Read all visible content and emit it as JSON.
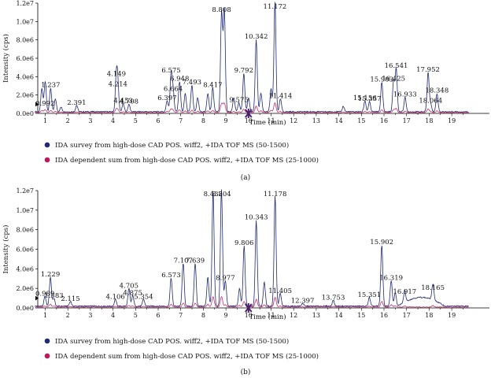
{
  "chart_data": [
    {
      "type": "line",
      "panel_label": "(a)",
      "xlabel": "Time (min)",
      "ylabel": "Intensity (cps)",
      "xlim": [
        0,
        20
      ],
      "ylim": [
        0,
        12000000
      ],
      "x_ticks": [
        1,
        2,
        3,
        4,
        5,
        6,
        7,
        8,
        9,
        10,
        11,
        12,
        13,
        14,
        15,
        16,
        17,
        18,
        19
      ],
      "y_ticks": [
        {
          "value": 0,
          "label": "0.0e0"
        },
        {
          "value": 2000000,
          "label": "2.0e6"
        },
        {
          "value": 4000000,
          "label": "4.0e6"
        },
        {
          "value": 6000000,
          "label": "6.0e6"
        },
        {
          "value": 8000000,
          "label": "8.0e6"
        },
        {
          "value": 10000000,
          "label": "1.0e7"
        },
        {
          "value": 12000000,
          "label": "1.2e7"
        }
      ],
      "series": [
        {
          "name": "IDA survey from high-dose CAD POS. wiff2, +IDA TOF MS (50-1500)",
          "color": "#1f2a78",
          "marker": "#1f2a78"
        },
        {
          "name": "IDA dependent sum from high-dose CAD POS. wiff2, +IDA TOF MS (25-1000)",
          "color": "#d0306a",
          "marker": "#c2185b"
        }
      ],
      "peaks": [
        {
          "time": 0.85,
          "height": 2500000,
          "label": ""
        },
        {
          "time": 1.0,
          "height": 2700000,
          "label": ""
        },
        {
          "time": 1.237,
          "height": 2600000,
          "label": "1.237"
        },
        {
          "time": 1.45,
          "height": 1400000,
          "label": ""
        },
        {
          "time": 0.992,
          "height": 600000,
          "label": "0.992"
        },
        {
          "time": 1.7,
          "height": 500000,
          "label": ""
        },
        {
          "time": 2.391,
          "height": 700000,
          "label": "2.391"
        },
        {
          "time": 4.149,
          "height": 3800000,
          "label": "4.149"
        },
        {
          "time": 4.214,
          "height": 2700000,
          "label": "4.214"
        },
        {
          "time": 4.453,
          "height": 900000,
          "label": "4.453"
        },
        {
          "time": 4.708,
          "height": 800000,
          "label": "4.708"
        },
        {
          "time": 6.397,
          "height": 1200000,
          "label": "6.397"
        },
        {
          "time": 6.575,
          "height": 4200000,
          "label": "6.575"
        },
        {
          "time": 6.664,
          "height": 2200000,
          "label": "6.664"
        },
        {
          "time": 6.948,
          "height": 3300000,
          "label": "6.948"
        },
        {
          "time": 7.2,
          "height": 2000000,
          "label": ""
        },
        {
          "time": 7.493,
          "height": 2900000,
          "label": "7.493"
        },
        {
          "time": 7.75,
          "height": 1500000,
          "label": ""
        },
        {
          "time": 8.2,
          "height": 2000000,
          "label": ""
        },
        {
          "time": 8.417,
          "height": 2600000,
          "label": "8.417"
        },
        {
          "time": 8.808,
          "height": 10800000,
          "label": "8.808"
        },
        {
          "time": 8.93,
          "height": 11200000,
          "label": ""
        },
        {
          "time": 9.35,
          "height": 1500000,
          "label": ""
        },
        {
          "time": 9.575,
          "height": 1000000,
          "label": "9.575"
        },
        {
          "time": 9.792,
          "height": 4200000,
          "label": "9.792"
        },
        {
          "time": 10.0,
          "height": 1500000,
          "label": ""
        },
        {
          "time": 10.342,
          "height": 7900000,
          "label": "10.342"
        },
        {
          "time": 10.55,
          "height": 2000000,
          "label": ""
        },
        {
          "time": 11.0,
          "height": 2500000,
          "label": ""
        },
        {
          "time": 11.172,
          "height": 12000000,
          "label": "11.172"
        },
        {
          "time": 11.414,
          "height": 1400000,
          "label": "11.414"
        },
        {
          "time": 14.2,
          "height": 600000,
          "label": ""
        },
        {
          "time": 15.156,
          "height": 1200000,
          "label": "15.156"
        },
        {
          "time": 15.357,
          "height": 1100000,
          "label": "15.357"
        },
        {
          "time": 15.903,
          "height": 3200000,
          "label": "15.903"
        },
        {
          "time": 16.425,
          "height": 3300000,
          "label": "16.425"
        },
        {
          "time": 16.541,
          "height": 4700000,
          "label": "16.541"
        },
        {
          "time": 16.933,
          "height": 1600000,
          "label": "16.933"
        },
        {
          "time": 17.952,
          "height": 4300000,
          "label": "17.952"
        },
        {
          "time": 18.348,
          "height": 2000000,
          "label": "18.348"
        },
        {
          "time": 18.064,
          "height": 900000,
          "label": "18.064"
        }
      ]
    },
    {
      "type": "line",
      "panel_label": "(b)",
      "xlabel": "Time (min)",
      "ylabel": "Intensity (cps)",
      "xlim": [
        0,
        20
      ],
      "ylim": [
        0,
        12000000
      ],
      "x_ticks": [
        1,
        2,
        3,
        4,
        5,
        6,
        7,
        8,
        9,
        10,
        11,
        12,
        13,
        14,
        15,
        16,
        17,
        18,
        19
      ],
      "y_ticks": [
        {
          "value": 0,
          "label": "0.0e0"
        },
        {
          "value": 2000000,
          "label": "2.0e6"
        },
        {
          "value": 4000000,
          "label": "4.0e6"
        },
        {
          "value": 6000000,
          "label": "6.0e6"
        },
        {
          "value": 8000000,
          "label": "8.0e6"
        },
        {
          "value": 10000000,
          "label": "1.0e7"
        },
        {
          "value": 12000000,
          "label": "1.2e7"
        }
      ],
      "series": [
        {
          "name": "IDA survey from high-dose CAD POS. wiff2, +IDA TOF MS (50-1500)",
          "color": "#1f2a78",
          "marker": "#1f2a78"
        },
        {
          "name": "IDA dependent sum from high-dose CAD POS. wiff2, +IDA TOF MS (25-1000)",
          "color": "#d0306a",
          "marker": "#c2185b"
        }
      ],
      "peaks": [
        {
          "time": 0.989,
          "height": 1000000,
          "label": "0.989"
        },
        {
          "time": 1.229,
          "height": 3000000,
          "label": "1.229"
        },
        {
          "time": 1.383,
          "height": 800000,
          "label": "1.383"
        },
        {
          "time": 2.115,
          "height": 500000,
          "label": "2.115"
        },
        {
          "time": 4.106,
          "height": 700000,
          "label": "4.106"
        },
        {
          "time": 4.705,
          "height": 1800000,
          "label": "4.705"
        },
        {
          "time": 4.875,
          "height": 1100000,
          "label": "4.875"
        },
        {
          "time": 5.354,
          "height": 700000,
          "label": "5.354"
        },
        {
          "time": 6.573,
          "height": 2900000,
          "label": "6.573"
        },
        {
          "time": 7.107,
          "height": 4400000,
          "label": "7.107"
        },
        {
          "time": 7.639,
          "height": 4400000,
          "label": "7.639"
        },
        {
          "time": 8.2,
          "height": 3000000,
          "label": ""
        },
        {
          "time": 8.432,
          "height": 11800000,
          "label": "8.432"
        },
        {
          "time": 8.804,
          "height": 12000000,
          "label": "8.804"
        },
        {
          "time": 8.977,
          "height": 2600000,
          "label": "8.977"
        },
        {
          "time": 9.6,
          "height": 1800000,
          "label": ""
        },
        {
          "time": 9.806,
          "height": 6200000,
          "label": "9.806"
        },
        {
          "time": 10.343,
          "height": 8800000,
          "label": "10.343"
        },
        {
          "time": 10.7,
          "height": 2500000,
          "label": ""
        },
        {
          "time": 11.178,
          "height": 11300000,
          "label": "11.178"
        },
        {
          "time": 11.405,
          "height": 1300000,
          "label": "11.405"
        },
        {
          "time": 12.397,
          "height": 300000,
          "label": "12.397"
        },
        {
          "time": 13.753,
          "height": 600000,
          "label": "13.753"
        },
        {
          "time": 15.351,
          "height": 900000,
          "label": "15.351"
        },
        {
          "time": 15.902,
          "height": 6300000,
          "label": "15.902"
        },
        {
          "time": 16.319,
          "height": 2600000,
          "label": "16.319"
        },
        {
          "time": 16.5,
          "height": 1400000,
          "label": ""
        },
        {
          "time": 16.917,
          "height": 1200000,
          "label": "16.917"
        },
        {
          "time": 18.165,
          "height": 1600000,
          "label": "18.165"
        }
      ]
    }
  ]
}
